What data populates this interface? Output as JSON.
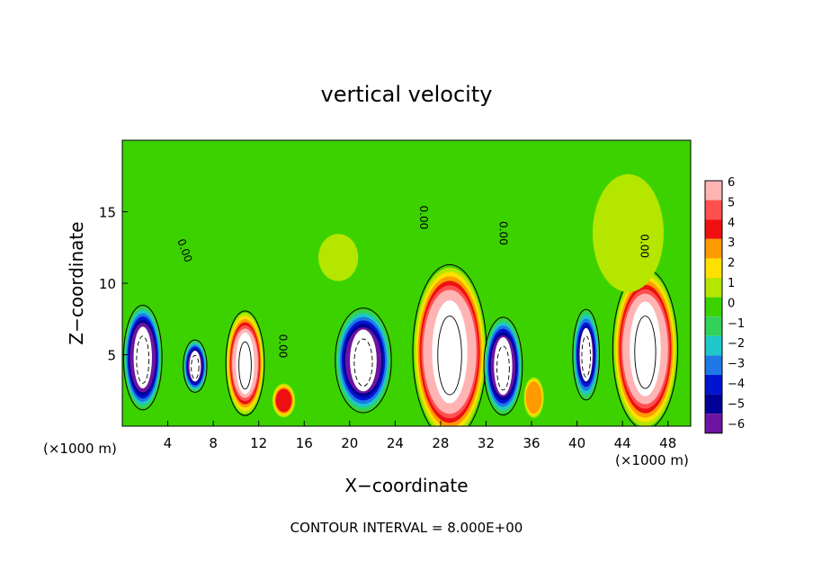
{
  "chart_data": {
    "type": "heatmap",
    "title": "vertical velocity",
    "xlabel": "X−coordinate",
    "ylabel": "Z−coordinate",
    "x_unit": "(×1000 m)",
    "xlim": [
      0,
      50
    ],
    "ylim": [
      0,
      20
    ],
    "x_ticks": [
      4,
      8,
      12,
      16,
      20,
      24,
      28,
      32,
      36,
      40,
      44,
      48
    ],
    "y_ticks": [
      5,
      10,
      15
    ],
    "colorbar": {
      "levels": [
        6,
        5,
        4,
        3,
        2,
        1,
        0,
        -1,
        -2,
        -3,
        -4,
        -5,
        -6
      ],
      "labels": [
        "6",
        "5",
        "4",
        "3",
        "2",
        "1",
        "0",
        "−1",
        "−2",
        "−3",
        "−4",
        "−5",
        "−6"
      ],
      "colors": [
        "#ffb4b4",
        "#ff5050",
        "#ee1010",
        "#ff9a00",
        "#ffe000",
        "#b4e600",
        "#3cd200",
        "#32d25a",
        "#1ec8c8",
        "#1e78e6",
        "#0014d2",
        "#000096",
        "#6e14a0"
      ]
    },
    "background_color": "#3cd200",
    "contour_interval_label": "CONTOUR INTERVAL = 8.000E+00",
    "contour_labels": [
      "0.00",
      "0.00",
      "0.00",
      "0.00",
      "0.00"
    ],
    "cells": [
      {
        "x": 1.8,
        "z": 4.8,
        "rx": 1.3,
        "rz": 3.0,
        "w": -10
      },
      {
        "x": 6.4,
        "z": 4.2,
        "rx": 0.8,
        "rz": 1.5,
        "w": -8
      },
      {
        "x": 10.8,
        "z": 4.4,
        "rx": 1.3,
        "rz": 3.0,
        "w": 10
      },
      {
        "x": 14.2,
        "z": 1.8,
        "rx": 0.8,
        "rz": 1.0,
        "w": 4
      },
      {
        "x": 21.2,
        "z": 4.6,
        "rx": 1.9,
        "rz": 3.0,
        "w": -9
      },
      {
        "x": 28.8,
        "z": 5.2,
        "rx": 2.5,
        "rz": 5.0,
        "w": 12
      },
      {
        "x": 33.5,
        "z": 4.2,
        "rx": 1.3,
        "rz": 2.8,
        "w": -9
      },
      {
        "x": 36.2,
        "z": 2.0,
        "rx": 0.7,
        "rz": 1.2,
        "w": 3
      },
      {
        "x": 40.8,
        "z": 5.0,
        "rx": 0.9,
        "rz": 2.6,
        "w": -7
      },
      {
        "x": 46.0,
        "z": 5.4,
        "rx": 2.2,
        "rz": 4.6,
        "w": 11
      },
      {
        "x": 4.5,
        "z": 12.5,
        "rx": 1.4,
        "rz": 2.2,
        "w": 0.8
      },
      {
        "x": 19.0,
        "z": 11.8,
        "rx": 1.4,
        "rz": 1.4,
        "w": 1.2
      },
      {
        "x": 26.5,
        "z": 13.0,
        "rx": 1.5,
        "rz": 4.0,
        "w": -0.7
      },
      {
        "x": 37.5,
        "z": 14.0,
        "rx": 3.0,
        "rz": 3.5,
        "w": 0.7
      },
      {
        "x": 44.5,
        "z": 13.5,
        "rx": 2.5,
        "rz": 3.5,
        "w": 1.0
      }
    ]
  }
}
